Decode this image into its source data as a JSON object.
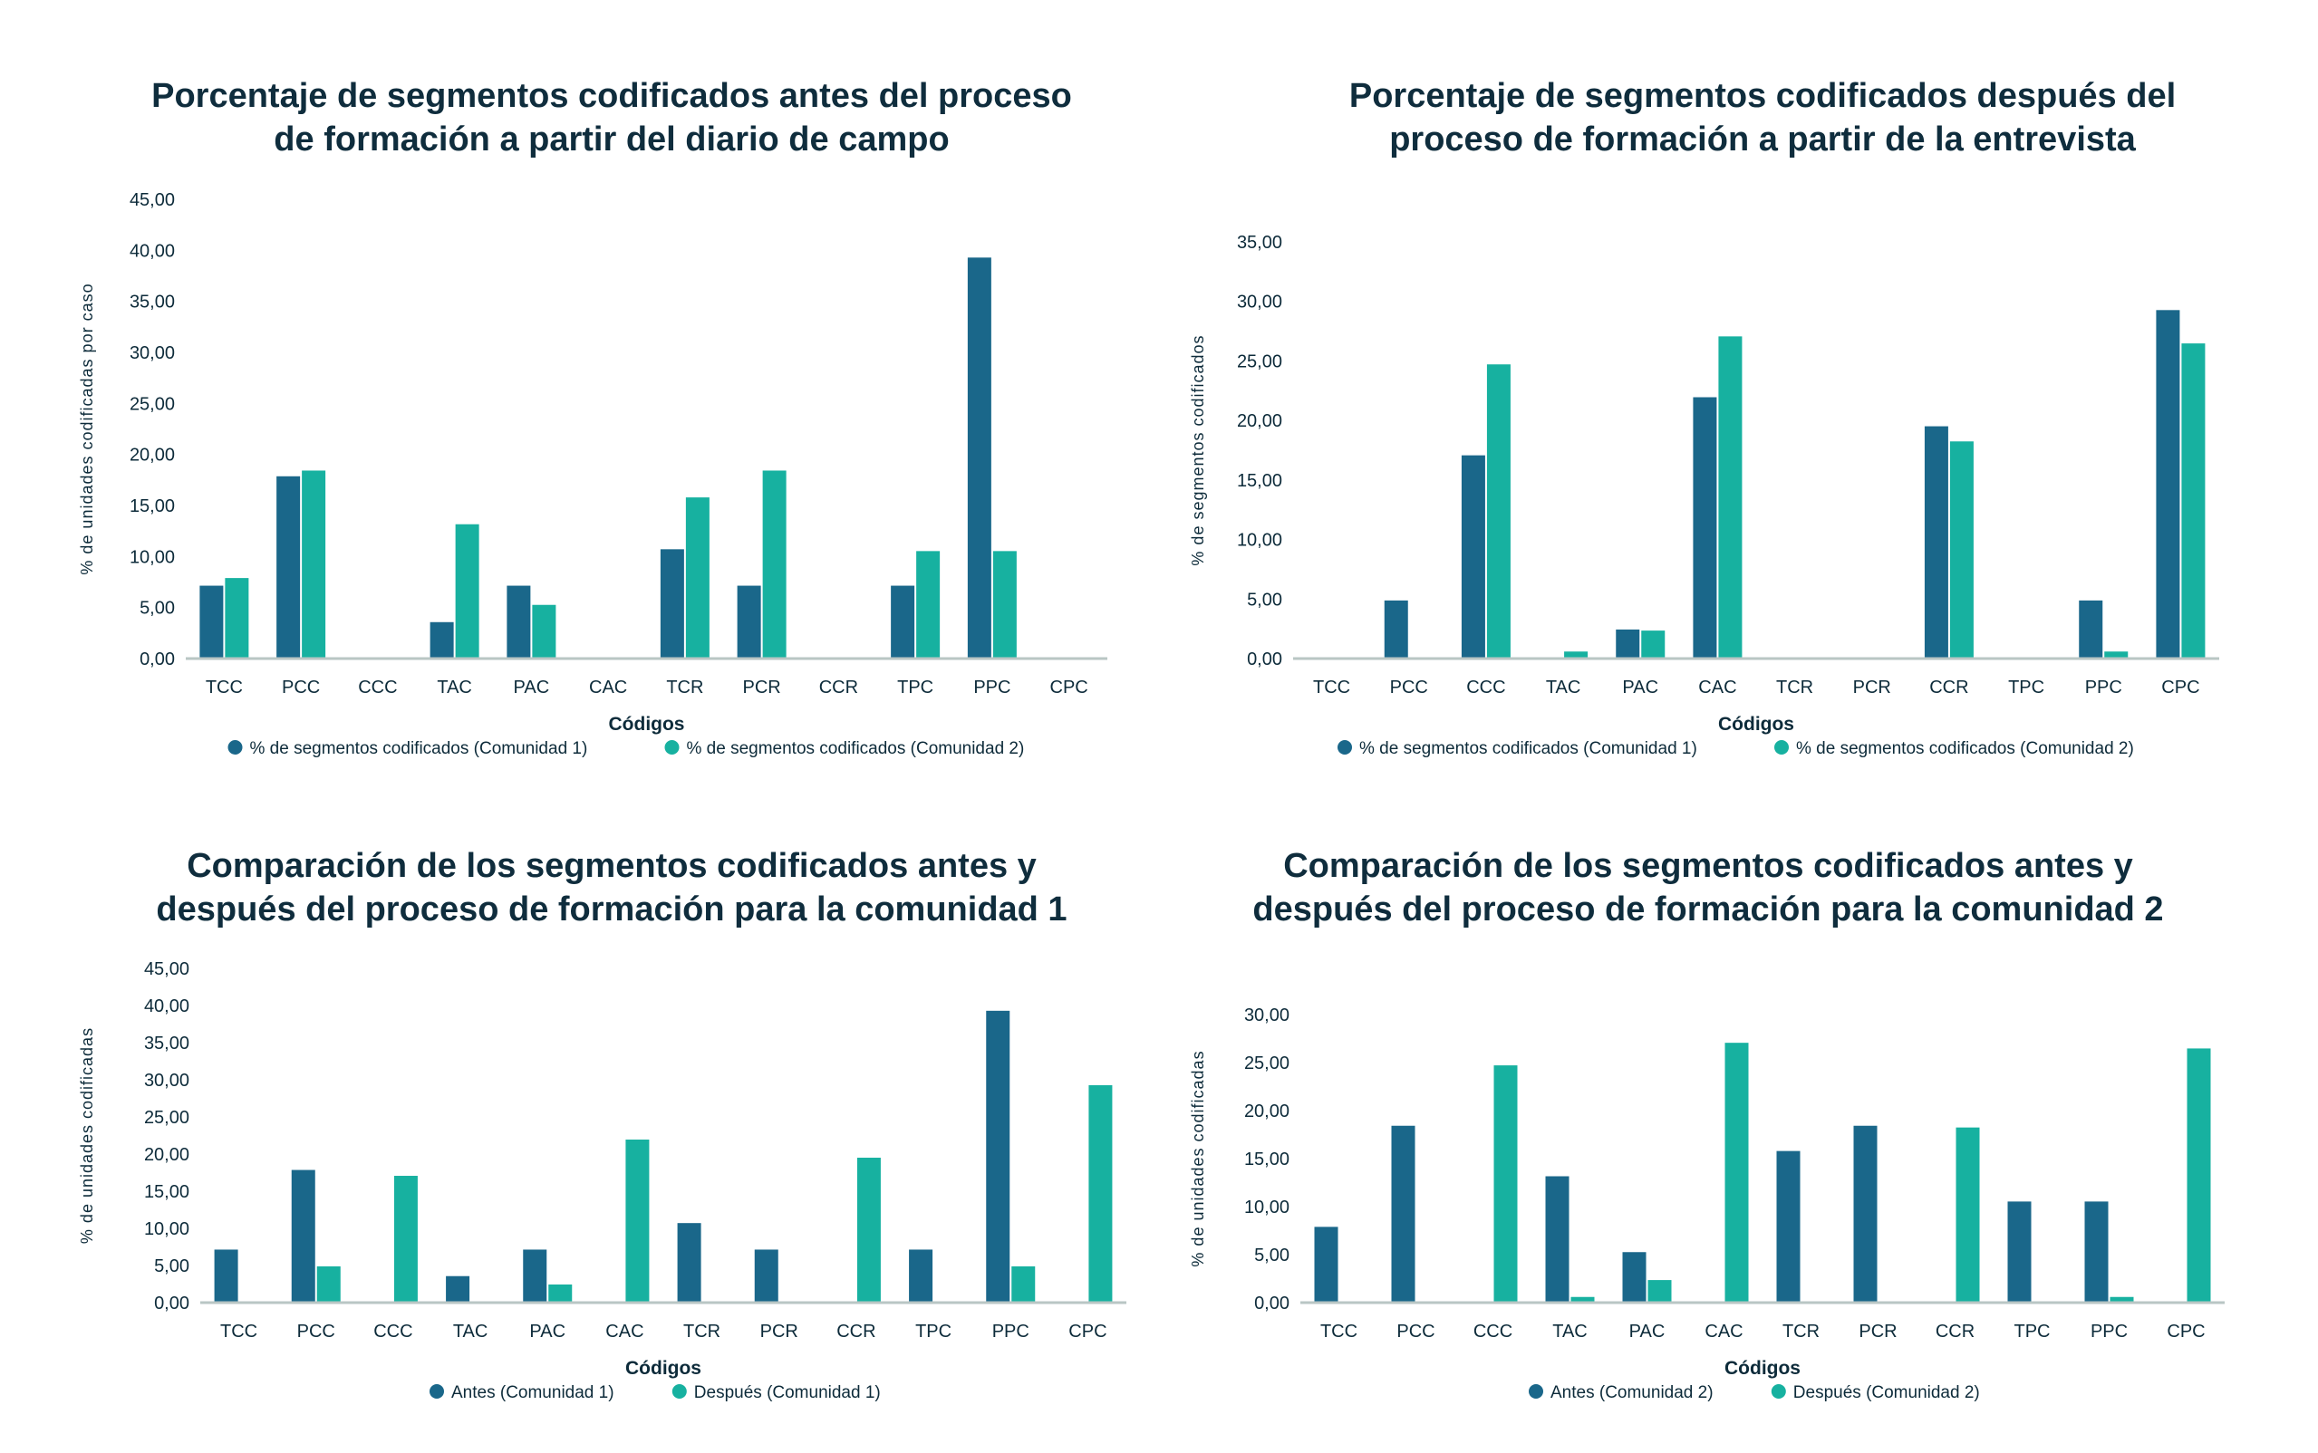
{
  "colors": {
    "series_dark": "#1a678a",
    "series_teal": "#17b1a0",
    "axis": "#b9c6c4",
    "text": "#0d2b3a"
  },
  "chart_data": [
    {
      "type": "bar",
      "title_lines": [
        "Porcentaje de segmentos codificados antes del proceso",
        "de formación a partir del diario de campo"
      ],
      "xlabel": "Códigos",
      "ylabel": "% de unidades codificadas por caso",
      "ylim": [
        0,
        45
      ],
      "ytick_step": 5,
      "yticks": [
        "0,00",
        "5,00",
        "10,00",
        "15,00",
        "20,00",
        "25,00",
        "30,00",
        "35,00",
        "40,00",
        "45,00"
      ],
      "grid": false,
      "legend_position": "bottom",
      "categories": [
        "TCC",
        "PCC",
        "CCC",
        "TAC",
        "PAC",
        "CAC",
        "TCR",
        "PCR",
        "CCR",
        "TPC",
        "PPC",
        "CPC"
      ],
      "series": [
        {
          "name": "% de segmentos codificados (Comunidad 1)",
          "color": "#1a678a",
          "values": [
            7.14,
            17.86,
            0,
            3.57,
            7.14,
            0,
            10.71,
            7.14,
            0,
            7.14,
            39.29,
            0
          ]
        },
        {
          "name": "% de segmentos codificados (Comunidad 2)",
          "color": "#17b1a0",
          "values": [
            7.89,
            18.42,
            0,
            13.16,
            5.26,
            0,
            15.79,
            18.42,
            0,
            10.53,
            10.53,
            0
          ]
        }
      ]
    },
    {
      "type": "bar",
      "title_lines": [
        "Porcentaje de segmentos codificados después del",
        "proceso de formación a partir de la entrevista"
      ],
      "xlabel": "Códigos",
      "ylabel": "% de segmentos codificados",
      "ylim": [
        0,
        35
      ],
      "ytick_step": 5,
      "yticks": [
        "0,00",
        "5,00",
        "10,00",
        "15,00",
        "20,00",
        "25,00",
        "30,00",
        "35,00"
      ],
      "grid": false,
      "legend_position": "bottom",
      "categories": [
        "TCC",
        "PCC",
        "CCC",
        "TAC",
        "PAC",
        "CAC",
        "TCR",
        "PCR",
        "CCR",
        "TPC",
        "PPC",
        "CPC"
      ],
      "series": [
        {
          "name": "% de segmentos codificados (Comunidad 1)",
          "color": "#1a678a",
          "values": [
            0,
            4.88,
            17.07,
            0,
            2.44,
            21.95,
            0,
            0,
            19.51,
            0,
            4.88,
            29.27
          ]
        },
        {
          "name": "% de segmentos codificados (Comunidad 2)",
          "color": "#17b1a0",
          "values": [
            0,
            0,
            24.71,
            0.59,
            2.35,
            27.06,
            0,
            0,
            18.24,
            0,
            0.59,
            26.47
          ]
        }
      ]
    },
    {
      "type": "bar",
      "title_lines": [
        "Comparación de los segmentos codificados antes y",
        "después del proceso de formación para la comunidad 1"
      ],
      "xlabel": "Códigos",
      "ylabel": "% de unidades codificadas",
      "ylim": [
        0,
        45
      ],
      "ytick_step": 5,
      "yticks": [
        "0,00",
        "5,00",
        "10,00",
        "15,00",
        "20,00",
        "25,00",
        "30,00",
        "35,00",
        "40,00",
        "45,00"
      ],
      "grid": false,
      "legend_position": "bottom",
      "categories": [
        "TCC",
        "PCC",
        "CCC",
        "TAC",
        "PAC",
        "CAC",
        "TCR",
        "PCR",
        "CCR",
        "TPC",
        "PPC",
        "CPC"
      ],
      "series": [
        {
          "name": "Antes (Comunidad 1)",
          "color": "#1a678a",
          "values": [
            7.14,
            17.86,
            0,
            3.57,
            7.14,
            0,
            10.71,
            7.14,
            0,
            7.14,
            39.29,
            0
          ]
        },
        {
          "name": "Después (Comunidad 1)",
          "color": "#17b1a0",
          "values": [
            0,
            4.88,
            17.07,
            0,
            2.44,
            21.95,
            0,
            0,
            19.51,
            0,
            4.88,
            29.27
          ]
        }
      ]
    },
    {
      "type": "bar",
      "title_lines": [
        "Comparación de los segmentos codificados antes y",
        "después del proceso de formación para la comunidad 2"
      ],
      "xlabel": "Códigos",
      "ylabel": "% de unidades codificadas",
      "ylim": [
        0,
        30
      ],
      "ytick_step": 5,
      "yticks": [
        "0,00",
        "5,00",
        "10,00",
        "15,00",
        "20,00",
        "25,00",
        "30,00"
      ],
      "grid": false,
      "legend_position": "bottom",
      "categories": [
        "TCC",
        "PCC",
        "CCC",
        "TAC",
        "PAC",
        "CAC",
        "TCR",
        "PCR",
        "CCR",
        "TPC",
        "PPC",
        "CPC"
      ],
      "series": [
        {
          "name": "Antes (Comunidad 2)",
          "color": "#1a678a",
          "values": [
            7.89,
            18.42,
            0,
            13.16,
            5.26,
            0,
            15.79,
            18.42,
            0,
            10.53,
            10.53,
            0
          ]
        },
        {
          "name": "Después (Comunidad 2)",
          "color": "#17b1a0",
          "values": [
            0,
            0,
            24.71,
            0.59,
            2.35,
            27.06,
            0,
            0,
            18.24,
            0,
            0.59,
            26.47
          ]
        }
      ]
    }
  ]
}
